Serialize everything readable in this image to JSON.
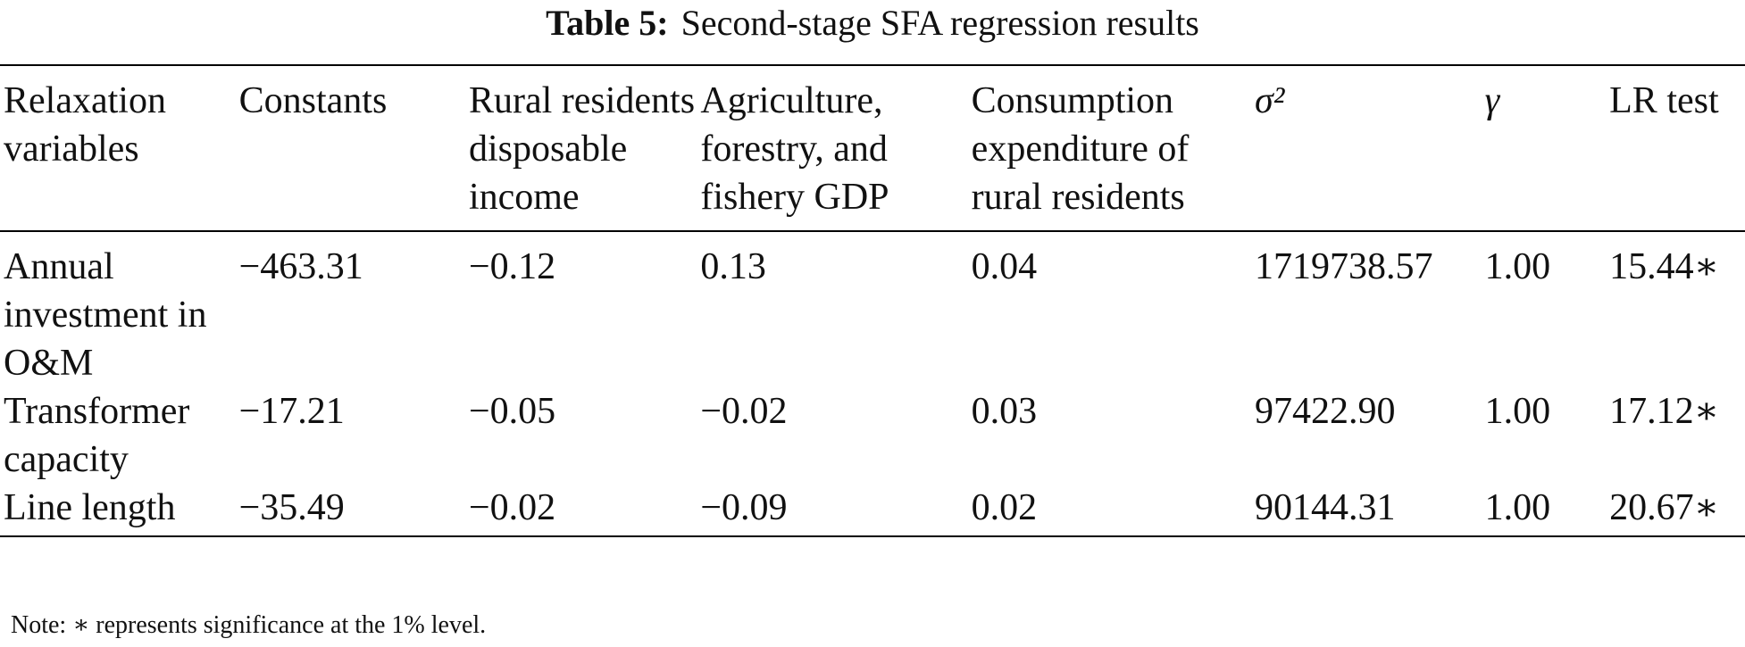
{
  "caption": {
    "label": "Table 5:",
    "text": "Second-stage SFA regression results"
  },
  "table": {
    "headers": [
      "Relaxation variables",
      "Constants",
      "Rural residents disposable income",
      "Agriculture, forestry, and fishery GDP",
      "Consumption expenditure of rural residents",
      "σ²",
      "γ",
      "LR test"
    ],
    "rows": [
      [
        "Annual investment in O&M",
        "−463.31",
        "−0.12",
        "0.13",
        "0.04",
        "1719738.57",
        "1.00",
        "15.44∗"
      ],
      [
        "Transformer capacity",
        "−17.21",
        "−0.05",
        "−0.02",
        "0.03",
        "97422.90",
        "1.00",
        "17.12∗"
      ],
      [
        "Line length",
        "−35.49",
        "−0.02",
        "−0.09",
        "0.02",
        "90144.31",
        "1.00",
        "20.67∗"
      ]
    ]
  },
  "note": "Note: ∗ represents significance at the 1% level."
}
